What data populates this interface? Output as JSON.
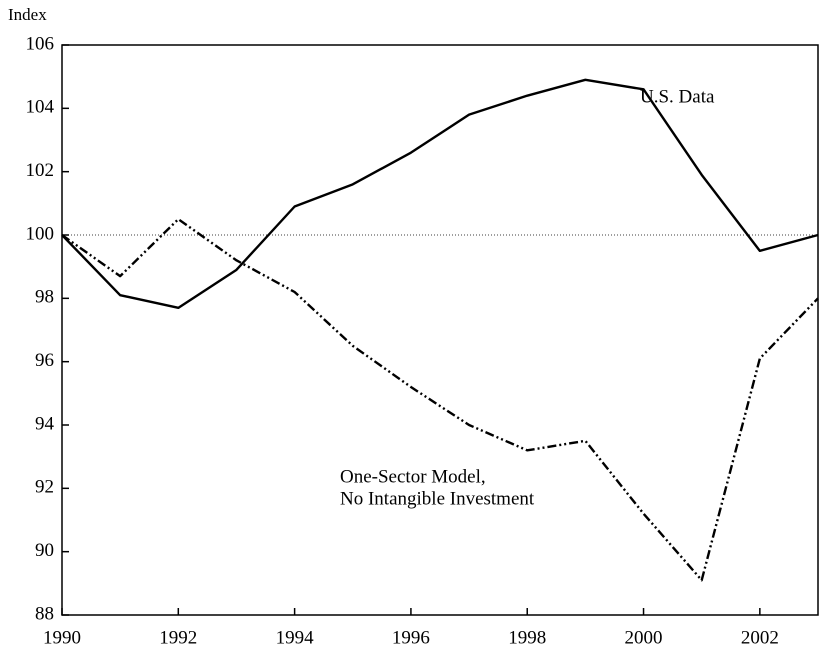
{
  "chart_data": {
    "type": "line",
    "y_label": "Index",
    "x": [
      1990,
      1991,
      1992,
      1993,
      1994,
      1995,
      1996,
      1997,
      1998,
      1999,
      2000,
      2001,
      2002,
      2003
    ],
    "series": [
      {
        "name": "U.S. Data",
        "color": "#000000",
        "dash": "solid",
        "values": [
          100.0,
          98.1,
          97.7,
          98.9,
          100.9,
          101.6,
          102.6,
          103.8,
          104.4,
          104.9,
          104.6,
          101.9,
          99.5,
          100.0
        ]
      },
      {
        "name": [
          "One-Sector Model,",
          "No Intangible Investment"
        ],
        "color": "#000000",
        "dash": "dash-dot-dot",
        "values": [
          100.0,
          98.7,
          100.5,
          99.2,
          98.2,
          96.5,
          95.2,
          94.0,
          93.2,
          93.5,
          91.2,
          89.1,
          96.1,
          98.0
        ]
      }
    ],
    "reference_line": 100,
    "xlim": [
      1990,
      2003
    ],
    "xticks": [
      1990,
      1992,
      1994,
      1996,
      1998,
      2000,
      2002
    ],
    "ylim": [
      88,
      106
    ],
    "yticks": [
      88,
      90,
      92,
      94,
      96,
      98,
      100,
      102,
      104,
      106
    ]
  }
}
